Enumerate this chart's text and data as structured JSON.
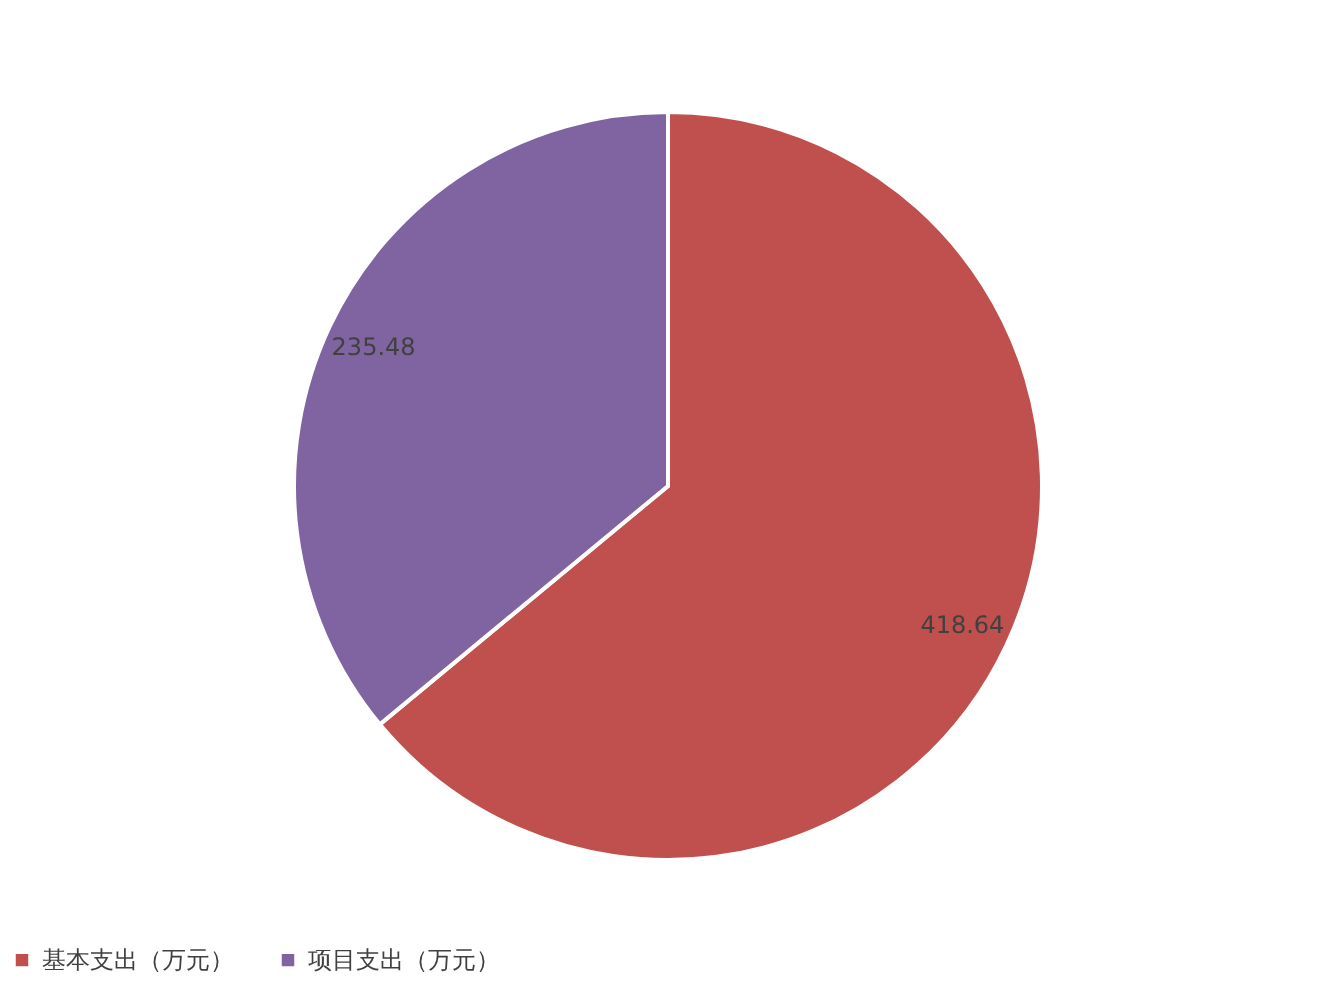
{
  "chart_data": {
    "type": "pie",
    "categories": [
      "基本支出（万元）",
      "项目支出（万元）"
    ],
    "values": [
      418.64,
      235.48
    ],
    "colors": [
      "#c0504d",
      "#8064a2"
    ],
    "data_labels": true,
    "legend": "bottom"
  }
}
